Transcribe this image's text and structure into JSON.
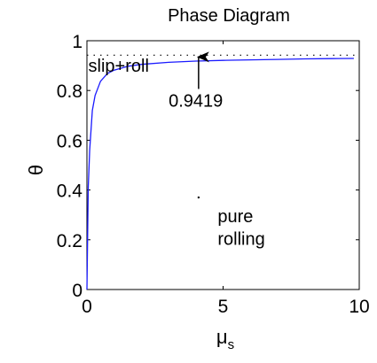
{
  "chart_data": {
    "type": "line",
    "title": "Phase Diagram",
    "xlabel": "μ",
    "xlabel_sub": "s",
    "ylabel": "θ",
    "xlim": [
      0,
      10
    ],
    "ylim": [
      0,
      1
    ],
    "xticks": [
      0,
      5,
      10
    ],
    "xtick_labels": [
      "0",
      "5",
      "10"
    ],
    "yticks": [
      0,
      0.2,
      0.4,
      0.6,
      0.8,
      1
    ],
    "ytick_labels": [
      "0",
      "0.2",
      "0.4",
      "0.6",
      "0.8",
      "1"
    ],
    "grid": false,
    "series": [
      {
        "role": "boundary",
        "color": "#1a1aff",
        "x": [
          0,
          0.05,
          0.1,
          0.2,
          0.3,
          0.5,
          0.75,
          1,
          1.5,
          2,
          3,
          4,
          5,
          6,
          7,
          8,
          9,
          9.8
        ],
        "y": [
          0,
          0.412,
          0.56,
          0.72,
          0.78,
          0.837,
          0.868,
          0.882,
          0.897,
          0.905,
          0.913,
          0.918,
          0.921,
          0.923,
          0.925,
          0.927,
          0.928,
          0.929
        ]
      },
      {
        "role": "asymptote",
        "color": "#000000",
        "style": "dotted",
        "x": [
          0,
          10
        ],
        "y": [
          0.9419,
          0.9419
        ]
      }
    ],
    "annotations": [
      {
        "text": "slip+roll",
        "x": 0.05,
        "y": 0.875
      },
      {
        "text": "0.9419",
        "x": 3.0,
        "y": 0.735,
        "arrow_to": [
          4.1,
          0.9419
        ]
      },
      {
        "text": "pure",
        "x": 4.8,
        "y": 0.27
      },
      {
        "text": "rolling",
        "x": 4.8,
        "y": 0.18
      }
    ],
    "markers": [
      {
        "x": 4.1,
        "y": 0.37
      }
    ]
  }
}
